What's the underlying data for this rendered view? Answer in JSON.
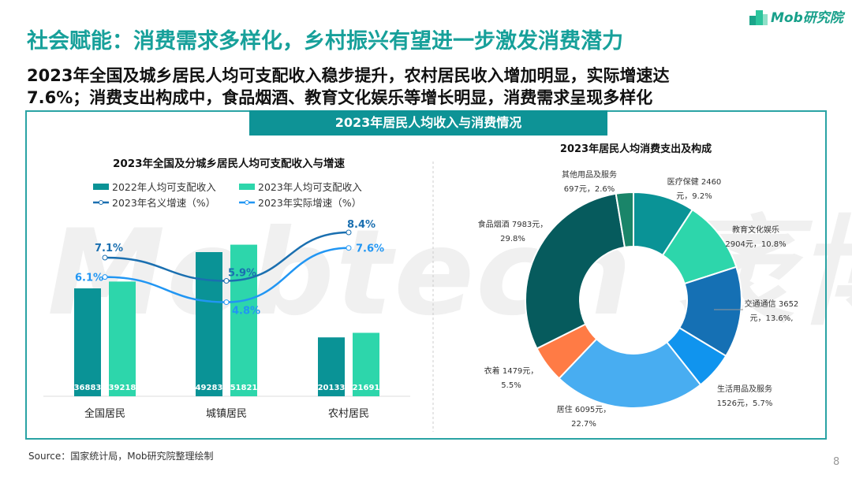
{
  "header": {
    "title": "社会赋能：消费需求多样化，乡村振兴有望进一步激发消费潜力",
    "subtitle_lines": [
      "2023年全国及城乡居民人均可支配收入稳步提升，农村居民收入增加明显，实际增速达",
      "7.6%；消费支出构成中，食品烟酒、教育文化娱乐等增长明显，消费需求呈现多样化"
    ],
    "logo_text": "Mob研究院"
  },
  "panel": {
    "banner": "2023年居民人均收入与消费情况"
  },
  "watermark": "Mobtech 袤博",
  "footer": {
    "source": "Source：国家统计局，Mob研究院整理绘制",
    "page": "8"
  },
  "chart_data": [
    {
      "type": "bar+line",
      "title": "2023年全国及分城乡居民人均可支配收入与增速",
      "categories": [
        "全国居民",
        "城镇居民",
        "农村居民"
      ],
      "series": [
        {
          "name": "2022年人均可支配收入",
          "kind": "bar",
          "color": "#0a9396",
          "values": [
            36883,
            49283,
            20133
          ]
        },
        {
          "name": "2023年人均可支配收入",
          "kind": "bar",
          "color": "#2dd6ab",
          "values": [
            39218,
            51821,
            21691
          ]
        },
        {
          "name": "2023年名义增速（%）",
          "kind": "line",
          "color": "#1a6fb0",
          "values": [
            7.1,
            5.9,
            8.4
          ],
          "labels": [
            "7.1%",
            "5.9%",
            "8.4%"
          ]
        },
        {
          "name": "2023年实际增速（%）",
          "kind": "line",
          "color": "#2196f3",
          "values": [
            6.1,
            4.8,
            7.6
          ],
          "labels": [
            "6.1%",
            "4.8%",
            "7.6%"
          ]
        }
      ],
      "legend": "top"
    },
    {
      "type": "pie",
      "donut": true,
      "title": "2023年居民人均消费支出及构成",
      "slices": [
        {
          "name": "医疗保健",
          "value": 2460,
          "pct": 9.2,
          "color": "#0a9396",
          "label1": "医疗保健  2460",
          "label2": "元，9.2%"
        },
        {
          "name": "教育文化娱乐",
          "value": 2904,
          "pct": 10.8,
          "color": "#2dd6ab",
          "label1": "教育文化娱乐",
          "label2": "2904元，10.8%"
        },
        {
          "name": "交通通信",
          "value": 3652,
          "pct": 13.6,
          "color": "#1570b4",
          "label1": "交通通信  3652",
          "label2": "元，13.6%,"
        },
        {
          "name": "生活用品及服务",
          "value": 1526,
          "pct": 5.7,
          "color": "#1094ee",
          "label1": "生活用品及服务",
          "label2": "1526元，5.7%"
        },
        {
          "name": "居住",
          "value": 6095,
          "pct": 22.7,
          "color": "#48adf1",
          "label1": "居住  6095元，",
          "label2": "22.7%"
        },
        {
          "name": "衣着",
          "value": 1479,
          "pct": 5.5,
          "color": "#ff7b45",
          "label1": "衣着  1479元，",
          "label2": "5.5%"
        },
        {
          "name": "食品烟酒",
          "value": 7983,
          "pct": 29.8,
          "color": "#065b5d",
          "label1": "食品烟酒  7983元，",
          "label2": "29.8%"
        },
        {
          "name": "其他用品及服务",
          "value": 697,
          "pct": 2.6,
          "color": "#1a8569",
          "label1": "其他用品及服务",
          "label2": "697元，2.6%"
        }
      ]
    }
  ]
}
